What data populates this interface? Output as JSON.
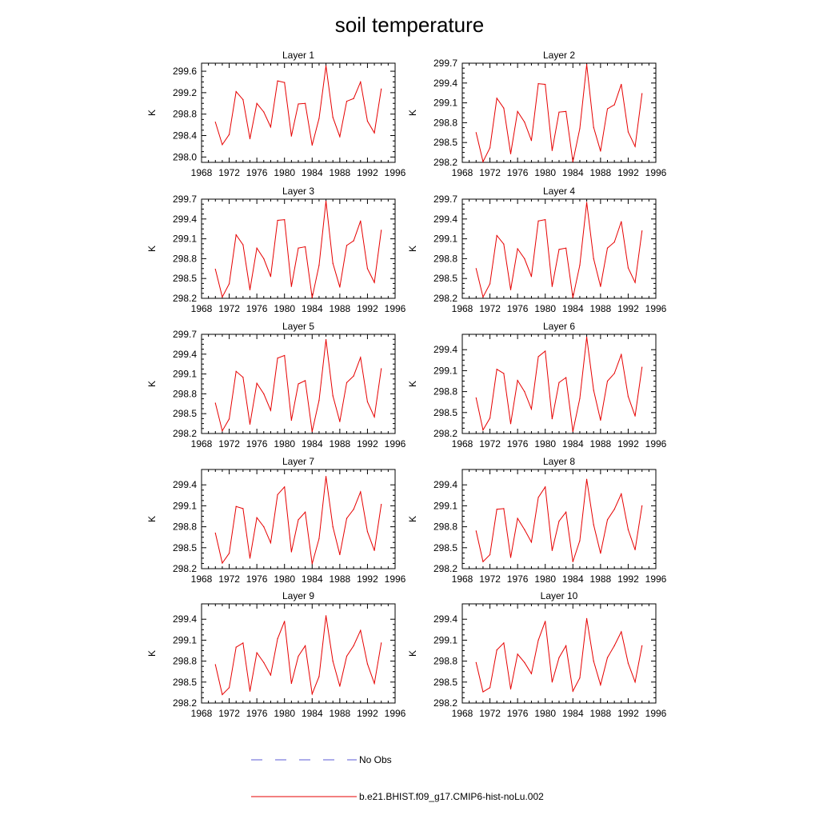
{
  "figure": {
    "title": "soil temperature"
  },
  "chart_data": {
    "type": "line",
    "x": [
      1970,
      1971,
      1972,
      1973,
      1974,
      1975,
      1976,
      1977,
      1978,
      1979,
      1980,
      1981,
      1982,
      1983,
      1984,
      1985,
      1986,
      1987,
      1988,
      1989,
      1990,
      1991,
      1992,
      1993,
      1994
    ],
    "xlim": [
      1968,
      1996
    ],
    "xticks": [
      "1968",
      "1972",
      "1976",
      "1980",
      "1984",
      "1988",
      "1992",
      "1996"
    ],
    "ylabel": "K",
    "grid": false,
    "legend_position": "bottom-center",
    "legend": [
      {
        "name": "No Obs",
        "color": "#5b5bd6",
        "style": "dashed"
      },
      {
        "name": "b.e21.BHIST.f09_g17.CMIP6-hist-noLu.002",
        "color": "#e60000",
        "style": "solid"
      }
    ],
    "series_color": "#e60000",
    "panels": [
      {
        "title": "Layer 1",
        "ylim": [
          297.9,
          299.75
        ],
        "yticks": [
          "298.0",
          "298.4",
          "298.8",
          "299.2",
          "299.6"
        ],
        "values": [
          298.65,
          298.23,
          298.42,
          299.22,
          299.07,
          298.34,
          299.0,
          298.84,
          298.56,
          299.42,
          299.39,
          298.39,
          298.99,
          299.0,
          298.22,
          298.72,
          299.7,
          298.74,
          298.38,
          299.04,
          299.09,
          299.4,
          298.67,
          298.45,
          299.27
        ]
      },
      {
        "title": "Layer 2",
        "ylim": [
          298.2,
          299.7
        ],
        "yticks": [
          "298.2",
          "298.5",
          "298.8",
          "299.1",
          "299.4",
          "299.7"
        ],
        "values": [
          298.65,
          298.21,
          298.42,
          299.17,
          299.02,
          298.33,
          298.97,
          298.81,
          298.53,
          299.39,
          299.38,
          298.38,
          298.96,
          298.97,
          298.21,
          298.71,
          299.68,
          298.73,
          298.37,
          299.01,
          299.07,
          299.38,
          298.66,
          298.44,
          299.24
        ]
      },
      {
        "title": "Layer 3",
        "ylim": [
          298.2,
          299.7
        ],
        "yticks": [
          "298.2",
          "298.5",
          "298.8",
          "299.1",
          "299.4",
          "299.7"
        ],
        "values": [
          298.64,
          298.22,
          298.42,
          299.16,
          299.01,
          298.33,
          298.96,
          298.8,
          298.53,
          299.38,
          299.39,
          298.38,
          298.96,
          298.98,
          298.21,
          298.7,
          299.67,
          298.73,
          298.37,
          299.0,
          299.07,
          299.37,
          298.65,
          298.44,
          299.23
        ]
      },
      {
        "title": "Layer 4",
        "ylim": [
          298.2,
          299.7
        ],
        "yticks": [
          "298.2",
          "298.5",
          "298.8",
          "299.1",
          "299.4",
          "299.7"
        ],
        "values": [
          298.65,
          298.22,
          298.42,
          299.15,
          299.02,
          298.33,
          298.95,
          298.8,
          298.53,
          299.37,
          299.39,
          298.38,
          298.94,
          298.96,
          298.21,
          298.7,
          299.65,
          298.8,
          298.38,
          298.96,
          299.05,
          299.36,
          298.66,
          298.44,
          299.22
        ]
      },
      {
        "title": "Layer 5",
        "ylim": [
          298.2,
          299.7
        ],
        "yticks": [
          "298.2",
          "298.5",
          "298.8",
          "299.1",
          "299.4",
          "299.7"
        ],
        "values": [
          298.66,
          298.24,
          298.42,
          299.14,
          299.05,
          298.34,
          298.96,
          298.8,
          298.55,
          299.34,
          299.38,
          298.4,
          298.95,
          299.0,
          298.23,
          298.7,
          299.62,
          298.77,
          298.38,
          298.97,
          299.07,
          299.35,
          298.68,
          298.45,
          299.18
        ]
      },
      {
        "title": "Layer 6",
        "ylim": [
          298.2,
          299.62
        ],
        "yticks": [
          "298.2",
          "298.5",
          "298.8",
          "299.1",
          "299.4"
        ],
        "values": [
          298.71,
          298.25,
          298.42,
          299.12,
          299.06,
          298.34,
          298.96,
          298.8,
          298.55,
          299.3,
          299.38,
          298.41,
          298.93,
          299.0,
          298.23,
          298.7,
          299.58,
          298.82,
          298.39,
          298.95,
          299.06,
          299.33,
          298.73,
          298.45,
          299.15
        ]
      },
      {
        "title": "Layer 7",
        "ylim": [
          298.2,
          299.62
        ],
        "yticks": [
          "298.2",
          "298.5",
          "298.8",
          "299.1",
          "299.4"
        ],
        "values": [
          298.71,
          298.28,
          298.42,
          299.09,
          299.06,
          298.35,
          298.93,
          298.8,
          298.57,
          299.26,
          299.37,
          298.44,
          298.9,
          299.01,
          298.27,
          298.63,
          299.52,
          298.8,
          298.4,
          298.92,
          299.05,
          299.3,
          298.73,
          298.46,
          299.12
        ]
      },
      {
        "title": "Layer 8",
        "ylim": [
          298.2,
          299.62
        ],
        "yticks": [
          "298.2",
          "298.5",
          "298.8",
          "299.1",
          "299.4"
        ],
        "values": [
          298.74,
          298.3,
          298.4,
          299.05,
          299.06,
          298.36,
          298.92,
          298.76,
          298.58,
          299.22,
          299.37,
          298.46,
          298.88,
          299.01,
          298.3,
          298.6,
          299.48,
          298.83,
          298.42,
          298.9,
          299.05,
          299.27,
          298.76,
          298.47,
          299.1
        ]
      },
      {
        "title": "Layer 9",
        "ylim": [
          298.2,
          299.62
        ],
        "yticks": [
          "298.2",
          "298.5",
          "298.8",
          "299.1",
          "299.4"
        ],
        "values": [
          298.75,
          298.32,
          298.42,
          299.0,
          299.06,
          298.37,
          298.92,
          298.78,
          298.6,
          299.12,
          299.37,
          298.48,
          298.87,
          299.02,
          298.33,
          298.58,
          299.45,
          298.8,
          298.44,
          298.87,
          299.02,
          299.24,
          298.76,
          298.48,
          299.06
        ]
      },
      {
        "title": "Layer 10",
        "ylim": [
          298.2,
          299.62
        ],
        "yticks": [
          "298.2",
          "298.5",
          "298.8",
          "299.1",
          "299.4"
        ],
        "values": [
          298.78,
          298.36,
          298.42,
          298.96,
          299.06,
          298.4,
          298.9,
          298.78,
          298.62,
          299.1,
          299.37,
          298.5,
          298.85,
          299.02,
          298.37,
          298.56,
          299.41,
          298.8,
          298.46,
          298.85,
          299.02,
          299.22,
          298.77,
          298.5,
          299.02
        ]
      }
    ]
  }
}
